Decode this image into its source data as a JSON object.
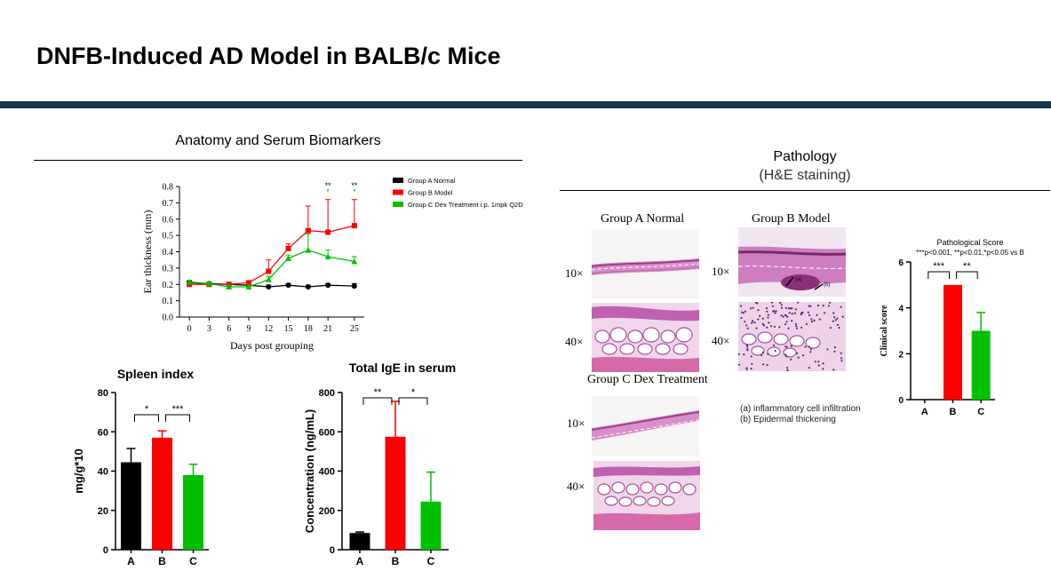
{
  "slide": {
    "title": "DNFB-Induced AD Model in BALB/c Mice",
    "left_heading": "Anatomy and Serum Biomarkers",
    "right_heading": "Pathology",
    "right_subheading": "(H&E staining)"
  },
  "colors": {
    "group_a": "#000000",
    "group_b": "#ff0000",
    "group_c": "#00c000",
    "title_bar": "#17324a"
  },
  "chart_data": [
    {
      "type": "line",
      "xlabel": "Days post grouping",
      "ylabel": "Ear thickness (mm)",
      "x": [
        0,
        3,
        6,
        9,
        12,
        15,
        18,
        21,
        25
      ],
      "xticks": [
        "0",
        "3",
        "6",
        "9",
        "12",
        "15",
        "18",
        "21",
        "25"
      ],
      "yticks": [
        "0.0",
        "0.1",
        "0.2",
        "0.3",
        "0.4",
        "0.5",
        "0.6",
        "0.7",
        "0.8"
      ],
      "ylim": [
        0,
        0.8
      ],
      "legend_position": "top-right",
      "series": [
        {
          "name": "Group A Normal",
          "color": "#000000",
          "values": [
            0.21,
            0.205,
            0.2,
            0.195,
            0.185,
            0.195,
            0.185,
            0.195,
            0.19
          ],
          "errors": [
            0.01,
            0.01,
            0.01,
            0.01,
            0.01,
            0.01,
            0.01,
            0.01,
            0.015
          ]
        },
        {
          "name": "Group B Model",
          "color": "#ff0000",
          "values": [
            0.2,
            0.2,
            0.2,
            0.21,
            0.28,
            0.42,
            0.53,
            0.52,
            0.56
          ],
          "errors": [
            0.01,
            0.01,
            0.01,
            0.01,
            0.07,
            0.03,
            0.15,
            0.2,
            0.16
          ]
        },
        {
          "name": "Group C Dex Treatment i.p. 1mpk Q2D",
          "color": "#00c000",
          "values": [
            0.215,
            0.205,
            0.185,
            0.185,
            0.23,
            0.36,
            0.41,
            0.37,
            0.34
          ],
          "errors": [
            0.01,
            0.01,
            0.01,
            0.01,
            0.02,
            0.02,
            0.1,
            0.04,
            0.03
          ]
        }
      ],
      "annotations": [
        {
          "x": 21,
          "black": "**",
          "green": "*"
        },
        {
          "x": 25,
          "black": "**",
          "green": "*"
        }
      ]
    },
    {
      "type": "bar",
      "title": "Spleen index",
      "ylabel": "mg/g*10",
      "categories": [
        "A",
        "B",
        "C"
      ],
      "values": [
        44.5,
        57,
        38
      ],
      "errors": [
        7,
        3.5,
        5.5
      ],
      "colors": [
        "#000000",
        "#ff0000",
        "#00c000"
      ],
      "yticks": [
        "0",
        "20",
        "40",
        "60",
        "80"
      ],
      "ylim": [
        0,
        80
      ],
      "significance": [
        {
          "from": 0,
          "to": 1,
          "label": "*"
        },
        {
          "from": 1,
          "to": 2,
          "label": "***"
        }
      ]
    },
    {
      "type": "bar",
      "title": "Total IgE in serum",
      "ylabel": "Concentration (ng/mL)",
      "categories": [
        "A",
        "B",
        "C"
      ],
      "values": [
        85,
        575,
        245
      ],
      "errors": [
        5,
        180,
        150
      ],
      "colors": [
        "#000000",
        "#ff0000",
        "#00c000"
      ],
      "yticks": [
        "0",
        "200",
        "400",
        "600",
        "800"
      ],
      "ylim": [
        0,
        800
      ],
      "significance": [
        {
          "from": 0,
          "to": 1,
          "label": "**"
        },
        {
          "from": 1,
          "to": 2,
          "label": "*"
        }
      ]
    },
    {
      "type": "bar",
      "title": "Pathological Score",
      "subtitle": "***p<0.001, **p<0.01,*p<0.05 vs B",
      "ylabel": "Clinical score",
      "categories": [
        "A",
        "B",
        "C"
      ],
      "values": [
        0,
        5,
        3
      ],
      "errors": [
        0,
        0,
        0.8
      ],
      "colors": [
        "#000000",
        "#ff0000",
        "#00c000"
      ],
      "yticks": [
        "0",
        "2",
        "4",
        "6"
      ],
      "ylim": [
        0,
        6
      ],
      "significance": [
        {
          "from": 0,
          "to": 1,
          "label": "***"
        },
        {
          "from": 1,
          "to": 2,
          "label": "**"
        }
      ]
    }
  ],
  "pathology": {
    "group_a_label": "Group A Normal",
    "group_b_label": "Group B Model",
    "group_c_label": "Group C Dex Treatment",
    "mag_10x": "10×",
    "mag_40x": "40×",
    "annotation_a": "(a)",
    "annotation_b": "(b)",
    "note_a": "(a) inflammatory cell infiltration",
    "note_b": "(b) Epidermal thickening"
  }
}
